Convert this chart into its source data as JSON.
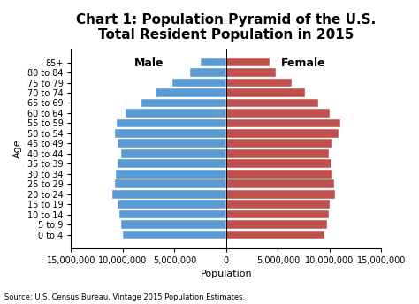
{
  "title": "Chart 1: Population Pyramid of the U.S.\nTotal Resident Population in 2015",
  "xlabel": "Population",
  "ylabel": "Age",
  "source": "Source: U.S. Census Bureau, Vintage 2015 Population Estimates.",
  "age_groups": [
    "0 to 4",
    "5 to 9",
    "10 to 14",
    "15 to 19",
    "20 to 24",
    "25 to 29",
    "30 to 34",
    "35 to 39",
    "40 to 44",
    "45 to 49",
    "50 to 54",
    "55 to 59",
    "60 to 64",
    "65 to 69",
    "70 to 74",
    "75 to 79",
    "80 to 84",
    "85+"
  ],
  "male": [
    10000000,
    10200000,
    10300000,
    10500000,
    11000000,
    10800000,
    10700000,
    10500000,
    10200000,
    10500000,
    10800000,
    10600000,
    9700000,
    8200000,
    6800000,
    5200000,
    3500000,
    2500000
  ],
  "female": [
    9500000,
    9800000,
    9900000,
    10000000,
    10500000,
    10400000,
    10300000,
    10200000,
    9900000,
    10300000,
    10900000,
    11000000,
    10000000,
    8900000,
    7600000,
    6300000,
    4800000,
    4200000
  ],
  "male_color": "#5b9bd5",
  "female_color": "#c0504d",
  "xlim": 15000000,
  "xticks": [
    -15000000,
    -10000000,
    -5000000,
    0,
    5000000,
    10000000,
    15000000
  ],
  "xtick_labels": [
    "15,000,000",
    "10,000,000",
    "5,000,000",
    "0",
    "5,000,000",
    "10,000,000",
    "15,000,000"
  ],
  "background_color": "#ffffff",
  "title_fontsize": 11,
  "label_fontsize": 8,
  "tick_fontsize": 7,
  "bar_height": 0.85
}
